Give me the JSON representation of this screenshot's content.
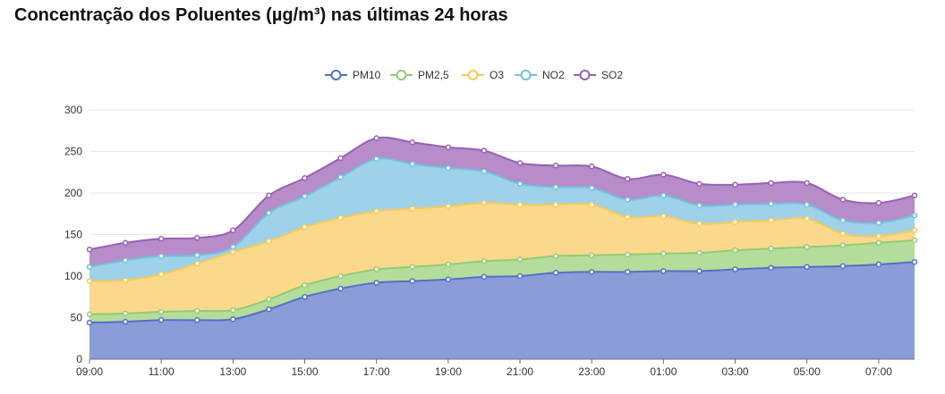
{
  "title": "Concentração dos Poluentes (µg/m³) nas últimas 24 horas",
  "chart_data": {
    "type": "area",
    "stacked": true,
    "title": "Concentração dos Poluentes (µg/m³) nas últimas 24 horas",
    "legend_position": "top-center",
    "grid": true,
    "ylim": [
      0,
      300
    ],
    "y_ticks": [
      "0",
      "50",
      "100",
      "150",
      "200",
      "250",
      "300"
    ],
    "x": [
      "09:00",
      "10:00",
      "11:00",
      "12:00",
      "13:00",
      "14:00",
      "15:00",
      "16:00",
      "17:00",
      "18:00",
      "19:00",
      "20:00",
      "21:00",
      "22:00",
      "23:00",
      "00:00",
      "01:00",
      "02:00",
      "03:00",
      "04:00",
      "05:00",
      "06:00",
      "07:00",
      "08:00"
    ],
    "x_tick_labels": [
      "09:00",
      "11:00",
      "13:00",
      "15:00",
      "17:00",
      "19:00",
      "21:00",
      "23:00",
      "01:00",
      "03:00",
      "05:00",
      "07:00"
    ],
    "series": [
      {
        "name": "PM10",
        "color": "#5470c6",
        "fill": "#8a9dd9",
        "values": [
          44,
          45,
          47,
          47,
          48,
          60,
          75,
          85,
          92,
          94,
          96,
          99,
          100,
          104,
          105,
          105,
          106,
          106,
          108,
          110,
          111,
          112,
          114,
          117
        ]
      },
      {
        "name": "PM2,5",
        "color": "#91cc75",
        "fill": "#b4dd9c",
        "values": [
          10,
          10,
          10,
          11,
          11,
          12,
          14,
          15,
          16,
          17,
          18,
          19,
          20,
          20,
          20,
          21,
          21,
          22,
          23,
          23,
          24,
          25,
          26,
          26
        ]
      },
      {
        "name": "O3",
        "color": "#fac858",
        "fill": "#fbd98c",
        "values": [
          40,
          40,
          45,
          57,
          70,
          70,
          70,
          70,
          70,
          70,
          70,
          70,
          66,
          62,
          61,
          45,
          45,
          35,
          34,
          34,
          34,
          14,
          8,
          12
        ]
      },
      {
        "name": "NO2",
        "color": "#73c0de",
        "fill": "#9dd2e8",
        "values": [
          17,
          24,
          22,
          10,
          6,
          34,
          37,
          49,
          63,
          54,
          46,
          38,
          25,
          21,
          20,
          21,
          25,
          22,
          21,
          20,
          17,
          16,
          16,
          18
        ]
      },
      {
        "name": "SO2",
        "color": "#9a60b4",
        "fill": "#b68cc9",
        "values": [
          21,
          21,
          21,
          21,
          20,
          21,
          22,
          23,
          25,
          26,
          25,
          25,
          25,
          26,
          26,
          25,
          25,
          26,
          24,
          25,
          26,
          25,
          24,
          24
        ]
      }
    ]
  }
}
